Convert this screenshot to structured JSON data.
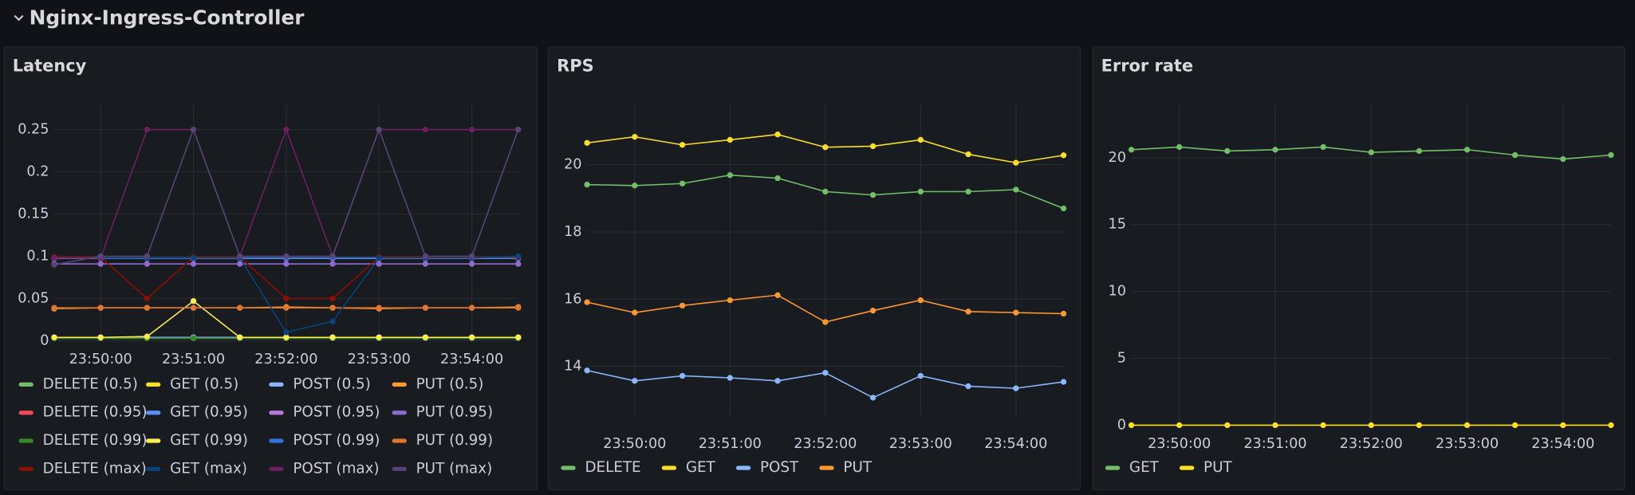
{
  "header": {
    "title": "Nginx-Ingress-Controller"
  },
  "chart_data": [
    {
      "type": "line",
      "title": "Latency",
      "x": [
        "23:49:30",
        "23:50:00",
        "23:50:30",
        "23:51:00",
        "23:51:30",
        "23:52:00",
        "23:52:30",
        "23:53:00",
        "23:53:30",
        "23:54:00",
        "23:54:30"
      ],
      "xlim": [
        "23:49:30",
        "23:54:30"
      ],
      "xticks": [
        "23:50:00",
        "23:51:00",
        "23:52:00",
        "23:53:00",
        "23:54:00"
      ],
      "ylim": [
        0,
        0.28
      ],
      "yticks": [
        0,
        0.05,
        0.1,
        0.15,
        0.2,
        0.25
      ],
      "grid": true,
      "legend": "bottom",
      "series": [
        {
          "name": "DELETE (0.5)",
          "color": "#73bf69",
          "values": [
            0.003,
            0.003,
            0.003,
            0.003,
            0.003,
            0.003,
            0.003,
            0.003,
            0.003,
            0.003,
            0.003
          ]
        },
        {
          "name": "GET (0.5)",
          "color": "#fade2a",
          "values": [
            0.004,
            0.004,
            0.004,
            0.004,
            0.004,
            0.004,
            0.004,
            0.004,
            0.004,
            0.004,
            0.004
          ]
        },
        {
          "name": "POST (0.5)",
          "color": "#8ab8ff",
          "values": [
            0.004,
            0.004,
            0.004,
            0.004,
            0.004,
            0.004,
            0.004,
            0.004,
            0.004,
            0.004,
            0.004
          ]
        },
        {
          "name": "PUT (0.5)",
          "color": "#ff9830",
          "values": [
            0.038,
            0.039,
            0.039,
            0.039,
            0.039,
            0.04,
            0.039,
            0.038,
            0.039,
            0.039,
            0.04
          ]
        },
        {
          "name": "DELETE (0.95)",
          "color": "#f2495c",
          "values": [
            0.0975,
            0.0975,
            0.0975,
            0.0975,
            0.0975,
            0.0975,
            0.0975,
            0.0975,
            0.0975,
            0.0975,
            0.0975
          ]
        },
        {
          "name": "GET (0.95)",
          "color": "#5794f2",
          "values": [
            0.0975,
            0.0975,
            0.0975,
            0.0975,
            0.0975,
            0.0975,
            0.0975,
            0.0975,
            0.0975,
            0.0975,
            0.0975
          ]
        },
        {
          "name": "POST (0.95)",
          "color": "#b877d9",
          "values": [
            0.098,
            0.098,
            0.098,
            0.098,
            0.098,
            0.098,
            0.098,
            0.098,
            0.098,
            0.098,
            0.098
          ]
        },
        {
          "name": "PUT (0.95)",
          "color": "#8f6ad1",
          "values": [
            0.091,
            0.091,
            0.091,
            0.091,
            0.091,
            0.091,
            0.091,
            0.091,
            0.091,
            0.091,
            0.091
          ]
        },
        {
          "name": "DELETE (0.99)",
          "color": "#37872d",
          "values": [
            0.003,
            0.003,
            0.003,
            0.003,
            0.003,
            0.003,
            0.003,
            0.003,
            0.003,
            0.003,
            0.003
          ]
        },
        {
          "name": "GET (0.99)",
          "color": "#ffee52",
          "values": [
            0.004,
            0.004,
            0.005,
            0.047,
            0.004,
            0.004,
            0.004,
            0.004,
            0.004,
            0.004,
            0.004
          ]
        },
        {
          "name": "POST (0.99)",
          "color": "#3274d9",
          "values": [
            0.098,
            0.098,
            0.098,
            0.098,
            0.098,
            0.098,
            0.098,
            0.098,
            0.098,
            0.098,
            0.098
          ]
        },
        {
          "name": "PUT (0.99)",
          "color": "#e0752d",
          "values": [
            0.039,
            0.039,
            0.039,
            0.039,
            0.039,
            0.039,
            0.039,
            0.039,
            0.039,
            0.039,
            0.039
          ]
        },
        {
          "name": "DELETE (max)",
          "color": "#890f02",
          "values": [
            0.099,
            0.099,
            0.05,
            0.099,
            0.099,
            0.05,
            0.05,
            0.099,
            0.099,
            0.099,
            0.099
          ]
        },
        {
          "name": "GET (max)",
          "color": "#0a437c",
          "values": [
            0.098,
            0.098,
            0.098,
            0.098,
            0.098,
            0.01,
            0.023,
            0.098,
            0.098,
            0.098,
            0.1
          ]
        },
        {
          "name": "POST (max)",
          "color": "#6d1f62",
          "values": [
            0.098,
            0.098,
            0.25,
            0.25,
            0.1,
            0.25,
            0.1,
            0.25,
            0.25,
            0.25,
            0.25
          ]
        },
        {
          "name": "PUT (max)",
          "color": "#584477",
          "values": [
            0.09,
            0.1,
            0.1,
            0.25,
            0.1,
            0.1,
            0.1,
            0.25,
            0.1,
            0.1,
            0.25
          ]
        }
      ]
    },
    {
      "type": "line",
      "title": "RPS",
      "x": [
        "23:49:30",
        "23:50:00",
        "23:50:30",
        "23:51:00",
        "23:51:30",
        "23:52:00",
        "23:52:30",
        "23:53:00",
        "23:53:30",
        "23:54:00",
        "23:54:30"
      ],
      "xlim": [
        "23:49:30",
        "23:54:30"
      ],
      "xticks": [
        "23:50:00",
        "23:51:00",
        "23:52:00",
        "23:53:00",
        "23:54:00"
      ],
      "ylim": [
        12.5,
        21.8
      ],
      "yticks": [
        14,
        16,
        18,
        20
      ],
      "grid": true,
      "legend": "bottom",
      "series": [
        {
          "name": "DELETE",
          "color": "#73bf69",
          "values": [
            19.41,
            19.38,
            19.44,
            19.69,
            19.6,
            19.2,
            19.1,
            19.2,
            19.2,
            19.26,
            18.7
          ]
        },
        {
          "name": "GET",
          "color": "#fade2a",
          "values": [
            20.65,
            20.83,
            20.59,
            20.74,
            20.9,
            20.52,
            20.55,
            20.74,
            20.31,
            20.06,
            20.28
          ]
        },
        {
          "name": "POST",
          "color": "#8ab8ff",
          "values": [
            13.88,
            13.57,
            13.72,
            13.66,
            13.57,
            13.81,
            13.07,
            13.72,
            13.41,
            13.35,
            13.54
          ]
        },
        {
          "name": "PUT",
          "color": "#ff9830",
          "values": [
            15.91,
            15.6,
            15.81,
            15.97,
            16.12,
            15.32,
            15.66,
            15.97,
            15.63,
            15.6,
            15.57
          ]
        }
      ]
    },
    {
      "type": "line",
      "title": "Error rate",
      "x": [
        "23:49:30",
        "23:50:00",
        "23:50:30",
        "23:51:00",
        "23:51:30",
        "23:52:00",
        "23:52:30",
        "23:53:00",
        "23:53:30",
        "23:54:00",
        "23:54:30"
      ],
      "xlim": [
        "23:49:30",
        "23:54:30"
      ],
      "xticks": [
        "23:50:00",
        "23:51:00",
        "23:52:00",
        "23:53:00",
        "23:54:00"
      ],
      "ylim": [
        0,
        24
      ],
      "yticks": [
        0,
        5,
        10,
        15,
        20
      ],
      "grid": true,
      "legend": "bottom",
      "series": [
        {
          "name": "GET",
          "color": "#73bf69",
          "values": [
            20.6,
            20.8,
            20.5,
            20.6,
            20.8,
            20.4,
            20.5,
            20.6,
            20.2,
            19.9,
            20.2
          ]
        },
        {
          "name": "PUT",
          "color": "#fade2a",
          "values": [
            0,
            0,
            0,
            0,
            0,
            0,
            0,
            0,
            0,
            0,
            0
          ]
        }
      ]
    }
  ]
}
